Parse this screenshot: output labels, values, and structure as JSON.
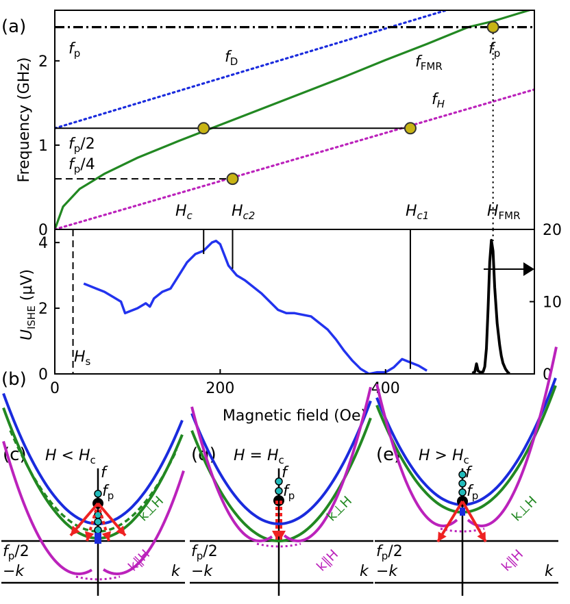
{
  "figure": {
    "panel_labels": [
      "(a)",
      "(b)",
      "(c)",
      "(d)",
      "(e)"
    ],
    "colors": {
      "blue": "#1a2bdd",
      "green": "#228822",
      "magenta": "#bb22bb",
      "black": "#000000",
      "red": "#ee2222",
      "yellow": "#c8b414",
      "cyan": "#22bbbb",
      "signal": "#2233ee"
    }
  },
  "chart_data": [
    {
      "panel": "(a)",
      "type": "line",
      "xlabel": "",
      "ylabel": "Frequency (GHz)",
      "xlim": [
        0,
        580
      ],
      "ylim": [
        0,
        2.6
      ],
      "y_ticks": [
        0,
        1,
        2
      ],
      "series": [
        {
          "name": "f_FMR",
          "style": "solid",
          "color": "green",
          "x": [
            0,
            10,
            30,
            60,
            100,
            150,
            200,
            250,
            300,
            350,
            400,
            450,
            500,
            530,
            580
          ],
          "y": [
            0,
            0.27,
            0.48,
            0.66,
            0.85,
            1.05,
            1.24,
            1.43,
            1.62,
            1.81,
            2.01,
            2.2,
            2.4,
            2.47,
            2.62
          ]
        },
        {
          "name": "f_D",
          "style": "dotted",
          "color": "blue",
          "x": [
            0,
            480
          ],
          "y": [
            1.2,
            2.62
          ]
        },
        {
          "name": "f_H",
          "style": "dotted",
          "color": "magenta",
          "x": [
            0,
            580
          ],
          "y": [
            0,
            1.66
          ]
        },
        {
          "name": "f_p",
          "style": "dashdot",
          "color": "black",
          "x": [
            0,
            580
          ],
          "y": [
            2.4,
            2.4
          ]
        }
      ],
      "reference_lines": [
        {
          "type": "hline",
          "y": 1.2,
          "x_from": 0,
          "x_to": 430,
          "style": "solid"
        },
        {
          "type": "hline",
          "y": 0.6,
          "x_from": 0,
          "x_to": 215,
          "style": "dashed"
        },
        {
          "type": "vline",
          "x": 530,
          "y_from": 0,
          "y_to": 2.4,
          "style": "dotted"
        }
      ],
      "markers": [
        {
          "x": 180,
          "y": 1.2
        },
        {
          "x": 215,
          "y": 0.6
        },
        {
          "x": 430,
          "y": 1.2
        },
        {
          "x": 530,
          "y": 2.4
        }
      ],
      "annotations": {
        "fp_left": {
          "main": "f",
          "sub": "p"
        },
        "fD": {
          "main": "f",
          "sub": "D"
        },
        "fFMR": {
          "main": "f",
          "sub": "FMR"
        },
        "fp_right": {
          "main": "f",
          "sub": "p"
        },
        "fH": {
          "main": "f",
          "sub": "H"
        },
        "fp2": {
          "main": "f",
          "sub": "p",
          "tail": "/2"
        },
        "fp4": {
          "main": "f",
          "sub": "p",
          "tail": "/4"
        },
        "Hc": {
          "main": "H",
          "sub": "c"
        },
        "Hc2": {
          "main": "H",
          "sub": "c2"
        },
        "Hc1": {
          "main": "H",
          "sub": "c1"
        },
        "HFMR": {
          "main": "H",
          "sub": "FMR"
        }
      }
    },
    {
      "panel": "(b)",
      "type": "line",
      "xlabel": "Magnetic field (Oe)",
      "ylabel": {
        "main": "U",
        "sub": "ISHE",
        "tail": " (μV)"
      },
      "xlim": [
        0,
        580
      ],
      "ylim": [
        0,
        4.4
      ],
      "x_ticks": [
        0,
        200,
        400
      ],
      "y_ticks": [
        0,
        2,
        4
      ],
      "right_ylim": [
        0,
        20
      ],
      "right_y_ticks": [
        0,
        10,
        20
      ],
      "series": [
        {
          "name": "U_ISHE",
          "color": "blue",
          "axis": "left",
          "x": [
            35,
            50,
            60,
            70,
            80,
            85,
            90,
            100,
            110,
            115,
            120,
            130,
            140,
            150,
            160,
            170,
            180,
            190,
            195,
            200,
            210,
            220,
            230,
            250,
            260,
            270,
            280,
            290,
            300,
            310,
            330,
            340,
            350,
            360,
            370,
            380,
            390,
            400,
            410,
            420,
            430,
            440,
            450
          ],
          "y": [
            2.75,
            2.6,
            2.5,
            2.35,
            2.2,
            1.85,
            1.9,
            2.0,
            2.15,
            2.05,
            2.3,
            2.5,
            2.6,
            3.0,
            3.4,
            3.65,
            3.75,
            4.0,
            4.05,
            3.95,
            3.3,
            3.0,
            2.85,
            2.45,
            2.2,
            1.95,
            1.85,
            1.85,
            1.8,
            1.75,
            1.35,
            1.05,
            0.7,
            0.4,
            0.15,
            0.0,
            0.05,
            0.05,
            0.2,
            0.45,
            0.35,
            0.25,
            0.1
          ]
        },
        {
          "name": "FMR",
          "color": "black",
          "axis": "right",
          "x": [
            505,
            508,
            510,
            512,
            515,
            518,
            520,
            522,
            524,
            526,
            528,
            530,
            532,
            535,
            538,
            540,
            542,
            545,
            548,
            550
          ],
          "y": [
            0.1,
            0.3,
            1.4,
            0.4,
            0.2,
            0.3,
            1.0,
            3.5,
            9.0,
            15.5,
            18.5,
            17.0,
            12.0,
            7.0,
            4.0,
            2.5,
            1.5,
            0.7,
            0.2,
            0.05
          ]
        }
      ],
      "reference_lines": [
        {
          "type": "vline",
          "x": 22,
          "style": "dashed"
        },
        {
          "type": "vline",
          "x": 180,
          "from_y": 3.65,
          "style": "solid"
        },
        {
          "type": "vline",
          "x": 215,
          "from_y": 3.2,
          "style": "solid"
        },
        {
          "type": "vline",
          "x": 430,
          "from_y": 0.15,
          "style": "solid"
        },
        {
          "type": "vline",
          "x": 530,
          "from_y": 18.4,
          "axis": "right",
          "style": "dotted"
        }
      ],
      "annotations": {
        "Hs": {
          "main": "H",
          "sub": "s"
        }
      }
    }
  ],
  "dispersion_panels": {
    "c": {
      "title": {
        "main": "H < H",
        "sub": "c"
      },
      "f_label": "f",
      "fp": {
        "main": "f",
        "sub": "p"
      },
      "fp2": {
        "main": "f",
        "sub": "p",
        "tail": "/2"
      },
      "k_neg": "−k",
      "k_pos": "k",
      "branch_perp": "k⊥H",
      "branch_par": "k∥H"
    },
    "d": {
      "title": {
        "main": "H = H",
        "sub": "c"
      },
      "f_label": "f",
      "fp": {
        "main": "f",
        "sub": "p"
      },
      "fp2": {
        "main": "f",
        "sub": "p",
        "tail": "/2"
      },
      "k_neg": "−k",
      "k_pos": "k",
      "branch_perp": "k⊥H",
      "branch_par": "k∥H"
    },
    "e": {
      "title": {
        "main": "H > H",
        "sub": "c"
      },
      "f_label": "f",
      "fp": {
        "main": "f",
        "sub": "p"
      },
      "fp2": {
        "main": "f",
        "sub": "p",
        "tail": "/2"
      },
      "k_neg": "−k",
      "k_pos": "k",
      "branch_perp": "k⊥H",
      "branch_par": "k∥H"
    }
  }
}
